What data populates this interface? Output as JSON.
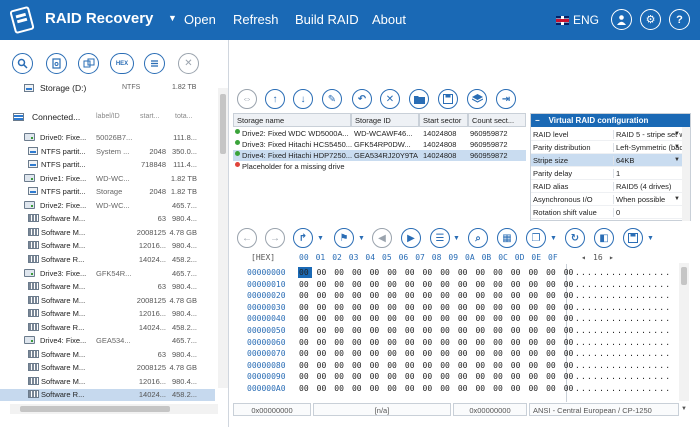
{
  "app": {
    "title": "RAID Recovery"
  },
  "menu": {
    "items": [
      "Open",
      "Refresh",
      "Build RAID",
      "About"
    ],
    "language": "ENG"
  },
  "left_tools": [
    "search-icon",
    "scan-icon",
    "partition-icon",
    "HEX",
    "list-icon",
    "close-icon"
  ],
  "storage_d": {
    "name": "Storage (D:)",
    "fs": "NTFS",
    "size": "1.82 TB"
  },
  "connected": {
    "name": "Connected...",
    "label": "label/ID",
    "start": "start...",
    "total": "tota..."
  },
  "tree": [
    {
      "type": "drive",
      "indent": 1,
      "name": "Drive0: Fixe...",
      "label": "50026B7...",
      "start": "",
      "total": "111.8..."
    },
    {
      "type": "part",
      "indent": 2,
      "name": "NTFS partit...",
      "label": "System ...",
      "start": "2048",
      "total": "350.0..."
    },
    {
      "type": "part",
      "indent": 2,
      "name": "NTFS partit...",
      "label": "",
      "start": "718848",
      "total": "111.4..."
    },
    {
      "type": "drive",
      "indent": 1,
      "name": "Drive1: Fixe...",
      "label": "WD-WC...",
      "start": "",
      "total": "1.82 TB"
    },
    {
      "type": "part",
      "indent": 2,
      "name": "NTFS partit...",
      "label": "Storage",
      "start": "2048",
      "total": "1.82 TB"
    },
    {
      "type": "drive",
      "indent": 1,
      "name": "Drive2: Fixe...",
      "label": "WD-WC...",
      "start": "",
      "total": "465.7..."
    },
    {
      "type": "soft",
      "indent": 2,
      "name": "Software M...",
      "label": "",
      "start": "63",
      "total": "980.4..."
    },
    {
      "type": "soft",
      "indent": 2,
      "name": "Software M...",
      "label": "",
      "start": "2008125",
      "total": "4.78 GB"
    },
    {
      "type": "soft",
      "indent": 2,
      "name": "Software M...",
      "label": "",
      "start": "12016...",
      "total": "980.4..."
    },
    {
      "type": "soft",
      "indent": 2,
      "name": "Software R...",
      "label": "",
      "start": "14024...",
      "total": "458.2..."
    },
    {
      "type": "drive",
      "indent": 1,
      "name": "Drive3: Fixe...",
      "label": "GFK54R...",
      "start": "",
      "total": "465.7..."
    },
    {
      "type": "soft",
      "indent": 2,
      "name": "Software M...",
      "label": "",
      "start": "63",
      "total": "980.4..."
    },
    {
      "type": "soft",
      "indent": 2,
      "name": "Software M...",
      "label": "",
      "start": "2008125",
      "total": "4.78 GB"
    },
    {
      "type": "soft",
      "indent": 2,
      "name": "Software M...",
      "label": "",
      "start": "12016...",
      "total": "980.4..."
    },
    {
      "type": "soft",
      "indent": 2,
      "name": "Software R...",
      "label": "",
      "start": "14024...",
      "total": "458.2..."
    },
    {
      "type": "drive",
      "indent": 1,
      "name": "Drive4: Fixe...",
      "label": "GEA534...",
      "start": "",
      "total": "465.7..."
    },
    {
      "type": "soft",
      "indent": 2,
      "name": "Software M...",
      "label": "",
      "start": "63",
      "total": "980.4..."
    },
    {
      "type": "soft",
      "indent": 2,
      "name": "Software M...",
      "label": "",
      "start": "2008125",
      "total": "4.78 GB"
    },
    {
      "type": "soft",
      "indent": 2,
      "name": "Software M...",
      "label": "",
      "start": "12016...",
      "total": "980.4..."
    },
    {
      "type": "soft",
      "indent": 2,
      "name": "Software R...",
      "label": "",
      "start": "14024...",
      "total": "458.2...",
      "selected": true
    }
  ],
  "storage_table": {
    "headers": [
      "Storage name",
      "Storage ID",
      "Start sector",
      "Count sect..."
    ],
    "rows": [
      {
        "status": "ok",
        "name": "Drive2: Fixed WDC WD5000A...",
        "id": "WD-WCAWF46...",
        "start": "14024808",
        "count": "960959872"
      },
      {
        "status": "ok",
        "name": "Drive3: Fixed Hitachi HCS5450...",
        "id": "GFK54RP0DW...",
        "start": "14024808",
        "count": "960959872"
      },
      {
        "status": "ok",
        "name": "Drive4: Fixed Hitachi HDP7250...",
        "id": "GEA534RJ20Y9TA",
        "start": "14024808",
        "count": "960959872",
        "selected": true
      },
      {
        "status": "missing",
        "name": "Placeholder for a missing drive",
        "id": "",
        "start": "",
        "count": ""
      }
    ]
  },
  "virtual_raid": {
    "title": "Virtual RAID configuration",
    "rows": [
      {
        "key": "RAID level",
        "value": "RAID 5 - stripe set w",
        "dropdown": true
      },
      {
        "key": "Parity distribution",
        "value": "Left-Symmetric (bac",
        "dropdown": true
      },
      {
        "key": "Stripe size",
        "value": "64KB",
        "dropdown": true,
        "selected": true
      },
      {
        "key": "Parity delay",
        "value": "1",
        "dropdown": false
      },
      {
        "key": "RAID alias",
        "value": "RAID5 (4 drives)",
        "dropdown": false
      },
      {
        "key": "Asynchronous I/O",
        "value": "When possible",
        "dropdown": true
      },
      {
        "key": "Rotation shift value",
        "value": "0",
        "dropdown": false
      }
    ]
  },
  "hex": {
    "label": "[HEX]",
    "columns": [
      "00",
      "01",
      "02",
      "03",
      "04",
      "05",
      "06",
      "07",
      "08",
      "09",
      "0A",
      "0B",
      "0C",
      "0D",
      "0E",
      "0F"
    ],
    "page": "16",
    "addresses": [
      "00000000",
      "00000010",
      "00000020",
      "00000030",
      "00000040",
      "00000050",
      "00000060",
      "00000070",
      "00000080",
      "00000090",
      "000000A0"
    ],
    "byte_row": "00 00 00 00 00 00 00 00 00 00 00 00 00 00 00 00",
    "ascii_row": "................"
  },
  "status": {
    "offset": "0x00000000",
    "selection": "[n/a]",
    "value": "0x00000000",
    "encoding": "ANSI - Central European / CP-1250"
  },
  "colors": {
    "titlebar": "#1a69b5",
    "accent": "#2a6db5",
    "selection": "#c9dcf0"
  }
}
